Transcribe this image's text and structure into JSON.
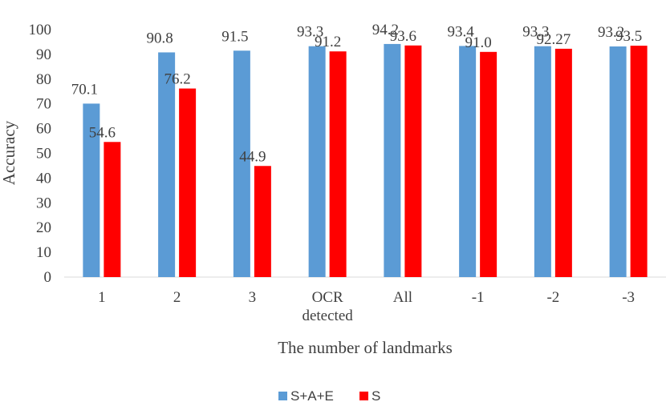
{
  "chart_data": {
    "type": "bar",
    "title": "",
    "xlabel": "The number of landmarks",
    "ylabel": "Accuracy",
    "ylim": [
      0,
      100
    ],
    "yticks": [
      0,
      10,
      20,
      30,
      40,
      50,
      60,
      70,
      80,
      90,
      100
    ],
    "categories": [
      [
        "1"
      ],
      [
        "2"
      ],
      [
        "3"
      ],
      [
        "OCR",
        "detected"
      ],
      [
        "All"
      ],
      [
        "-1"
      ],
      [
        "-2"
      ],
      [
        "-3"
      ]
    ],
    "series": [
      {
        "name": "S+A+E",
        "color": "#5B9BD5",
        "values": [
          70.1,
          90.8,
          91.5,
          93.3,
          94.2,
          93.4,
          93.3,
          93.2
        ],
        "labels": [
          "70.1",
          "90.8",
          "91.5",
          "93.3",
          "94.2",
          "93.4",
          "93.3",
          "93.2"
        ]
      },
      {
        "name": "S",
        "color": "#FF0000",
        "values": [
          54.6,
          76.2,
          44.9,
          91.2,
          93.6,
          91.0,
          92.27,
          93.5
        ],
        "labels": [
          "54.6",
          "76.2",
          "44.9",
          "91.2",
          "93.6",
          "91.0",
          "92.27",
          "93.5"
        ]
      }
    ],
    "legend_position": "bottom-center",
    "grid": false
  }
}
